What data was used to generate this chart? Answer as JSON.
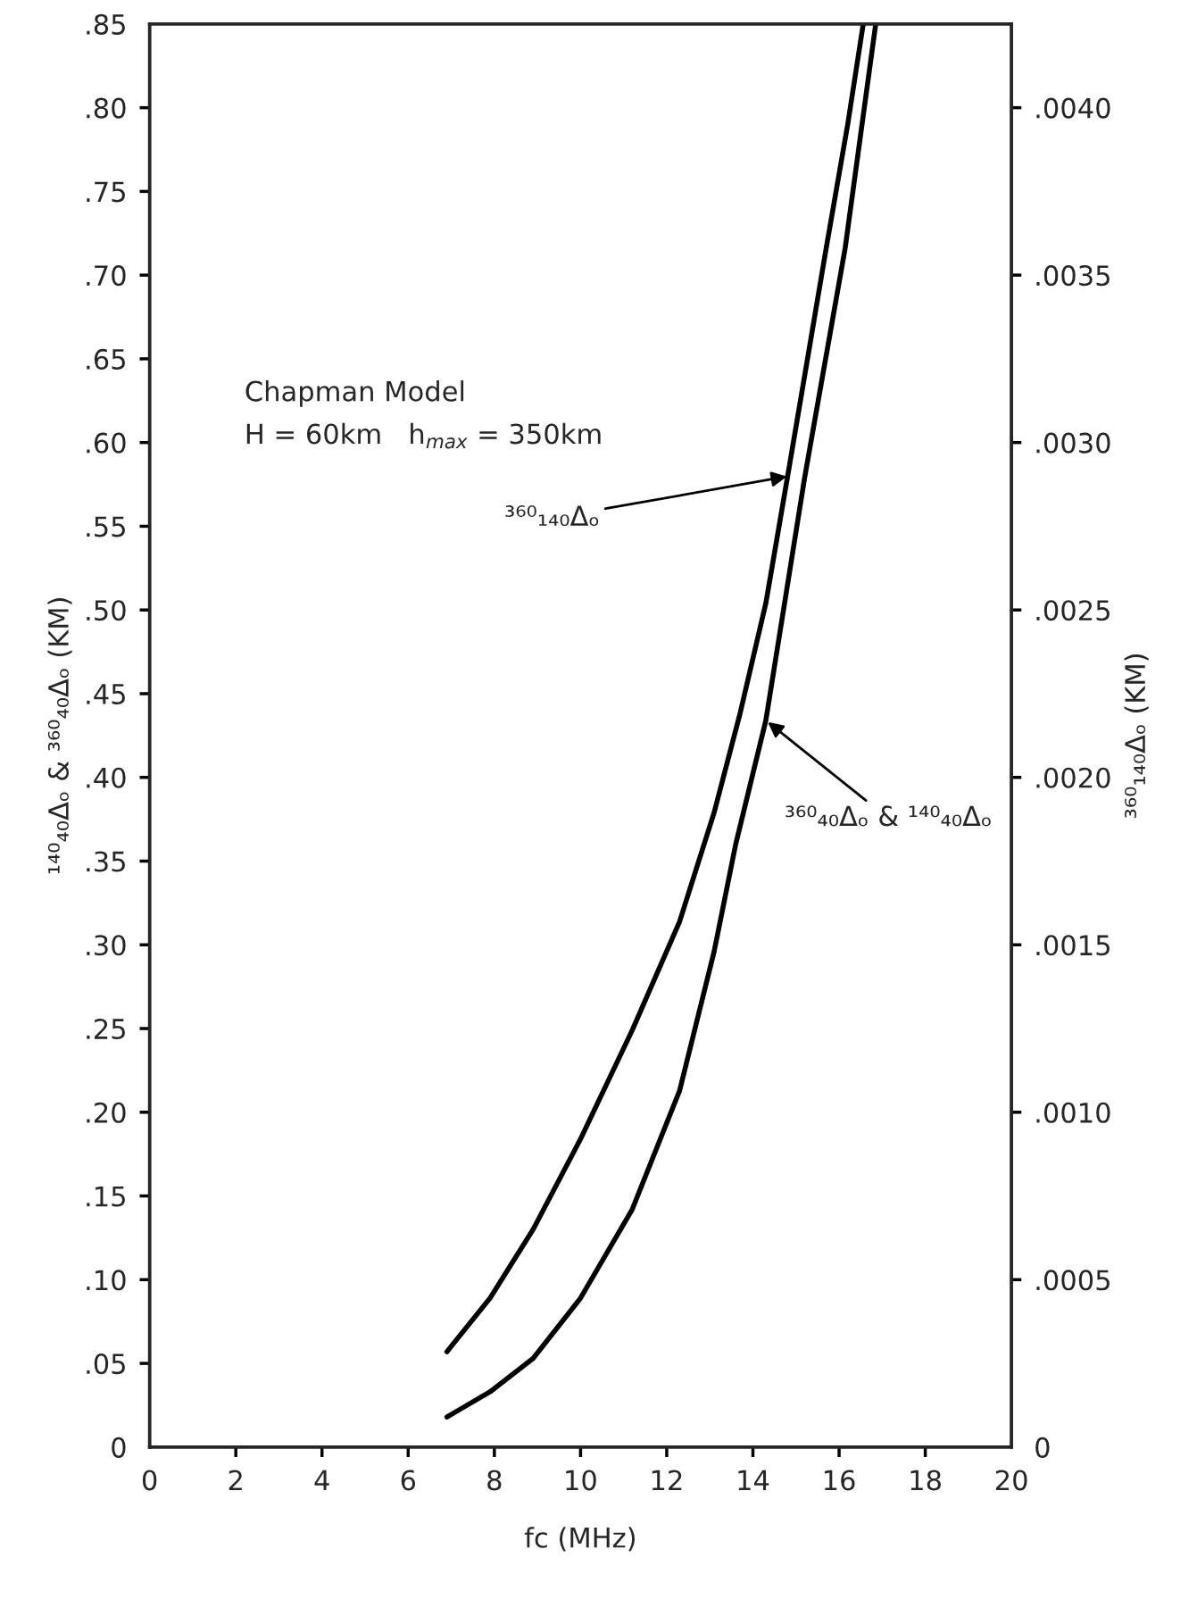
{
  "chart_data": {
    "type": "line",
    "xlabel": "fc (MHz)",
    "ylabel": "¹⁴⁰₄₀Δₒ & ³⁶⁰₄₀Δₒ (KM)",
    "y2label": "³⁶⁰₁₄₀Δₒ (KM)",
    "xlim": [
      0,
      20
    ],
    "xticks": [
      0,
      2,
      4,
      6,
      8,
      10,
      12,
      14,
      16,
      18,
      20
    ],
    "ylim": [
      0,
      0.85
    ],
    "yticks": [
      {
        "value": 0,
        "label": "0"
      },
      {
        "value": 0.05,
        "label": ".05"
      },
      {
        "value": 0.1,
        "label": ".10"
      },
      {
        "value": 0.15,
        "label": ".15"
      },
      {
        "value": 0.2,
        "label": ".20"
      },
      {
        "value": 0.25,
        "label": ".25"
      },
      {
        "value": 0.3,
        "label": ".30"
      },
      {
        "value": 0.35,
        "label": ".35"
      },
      {
        "value": 0.4,
        "label": ".40"
      },
      {
        "value": 0.45,
        "label": ".45"
      },
      {
        "value": 0.5,
        "label": ".50"
      },
      {
        "value": 0.55,
        "label": ".55"
      },
      {
        "value": 0.6,
        "label": ".60"
      },
      {
        "value": 0.65,
        "label": ".65"
      },
      {
        "value": 0.7,
        "label": ".70"
      },
      {
        "value": 0.75,
        "label": ".75"
      },
      {
        "value": 0.8,
        "label": ".80"
      },
      {
        "value": 0.85,
        "label": ".85"
      }
    ],
    "y2lim": [
      0,
      0.00425
    ],
    "y2ticks": [
      {
        "value": 0,
        "label": "0"
      },
      {
        "value": 0.0005,
        "label": ".0005"
      },
      {
        "value": 0.001,
        "label": ".0010"
      },
      {
        "value": 0.0015,
        "label": ".0015"
      },
      {
        "value": 0.002,
        "label": ".0020"
      },
      {
        "value": 0.0025,
        "label": ".0025"
      },
      {
        "value": 0.003,
        "label": ".0030"
      },
      {
        "value": 0.0035,
        "label": ".0035"
      },
      {
        "value": 0.004,
        "label": ".0040"
      }
    ],
    "series": [
      {
        "color": "#000000",
        "axis": "y2",
        "x": [
          6.9,
          7.9,
          8.9,
          10,
          11.2,
          12.3,
          13.1,
          13.7,
          14.3,
          14.8,
          15.3,
          15.7,
          16.2,
          16.56
        ],
        "values": [
          0.000285,
          0.000445,
          0.00065,
          0.00092,
          0.001245,
          0.00157,
          0.001895,
          0.00219,
          0.00252,
          0.002895,
          0.003275,
          0.00358,
          0.00395,
          0.00425
        ]
      },
      {
        "color": "#000000",
        "x": [
          6.9,
          7.9,
          8.9,
          10,
          11.2,
          12.3,
          13.1,
          13.6,
          14.3,
          15.2,
          16.14,
          16.85
        ],
        "values": [
          0.018,
          0.033,
          0.053,
          0.089,
          0.142,
          0.213,
          0.296,
          0.36,
          0.434,
          0.579,
          0.716,
          0.85
        ]
      }
    ],
    "annotations": [
      "Chapman Model",
      "H = 60km   h$_{max}$ = 350km",
      {
        "text": "³⁶⁰₁₄₀Δₒ",
        "x": 14.85,
        "y": 0.58
      },
      {
        "text": "³⁶⁰₄₀Δₒ & ¹⁴⁰₄₀Δₒ",
        "x": 14.3,
        "y": 0.434
      }
    ],
    "grid": false,
    "legend": false,
    "line_style": "solid",
    "marker": "none"
  }
}
